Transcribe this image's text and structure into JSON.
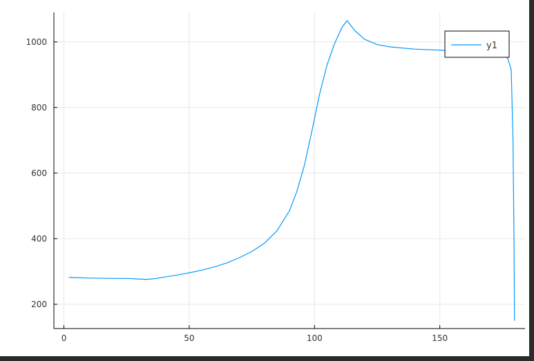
{
  "chart_data": {
    "type": "line",
    "title": "",
    "xlabel": "",
    "ylabel": "",
    "xlim": [
      -4,
      184
    ],
    "ylim": [
      126,
      1090
    ],
    "x_ticks": [
      0,
      50,
      100,
      150
    ],
    "y_ticks": [
      200,
      400,
      600,
      800,
      1000
    ],
    "grid": true,
    "legend_position": "top-right",
    "series": [
      {
        "name": "y1",
        "color": "#009af9",
        "points": [
          [
            2,
            282
          ],
          [
            10,
            280
          ],
          [
            20,
            279
          ],
          [
            25,
            279
          ],
          [
            30,
            277
          ],
          [
            33,
            276
          ],
          [
            36,
            278
          ],
          [
            40,
            283
          ],
          [
            45,
            289
          ],
          [
            50,
            296
          ],
          [
            55,
            304
          ],
          [
            60,
            314
          ],
          [
            65,
            326
          ],
          [
            70,
            342
          ],
          [
            75,
            361
          ],
          [
            80,
            386
          ],
          [
            85,
            424
          ],
          [
            90,
            485
          ],
          [
            93,
            545
          ],
          [
            96,
            625
          ],
          [
            99,
            730
          ],
          [
            102,
            840
          ],
          [
            105,
            930
          ],
          [
            108,
            995
          ],
          [
            111,
            1045
          ],
          [
            113,
            1065
          ],
          [
            116,
            1035
          ],
          [
            120,
            1008
          ],
          [
            125,
            992
          ],
          [
            130,
            985
          ],
          [
            140,
            978
          ],
          [
            150,
            975
          ],
          [
            160,
            971
          ],
          [
            170,
            966
          ],
          [
            174,
            963
          ],
          [
            177,
            952
          ],
          [
            178.5,
            915
          ],
          [
            179.2,
            700
          ],
          [
            179.6,
            400
          ],
          [
            179.8,
            150
          ]
        ]
      }
    ]
  }
}
